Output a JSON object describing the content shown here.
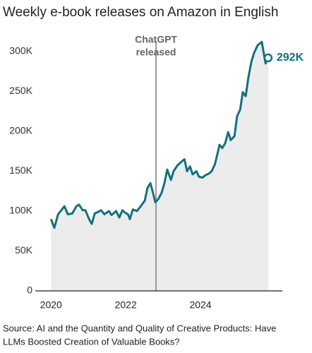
{
  "chart_data": {
    "type": "line",
    "title": "Weekly e-book releases on Amazon in English",
    "source": [
      "Source: AI and the Quantity and Quality of Creative Products: Have",
      "LLMs Boosted Creation of Valuable Books?"
    ],
    "x": [
      2020.0,
      2020.09,
      2020.19,
      2020.36,
      2020.45,
      2020.57,
      2020.68,
      2020.75,
      2020.85,
      2020.92,
      2021.02,
      2021.09,
      2021.17,
      2021.26,
      2021.34,
      2021.43,
      2021.55,
      2021.62,
      2021.74,
      2021.83,
      2021.91,
      2021.98,
      2022.06,
      2022.11,
      2022.19,
      2022.3,
      2022.4,
      2022.51,
      2022.58,
      2022.66,
      2022.74,
      2022.79,
      2022.87,
      2022.96,
      2023.04,
      2023.11,
      2023.21,
      2023.28,
      2023.38,
      2023.47,
      2023.57,
      2023.64,
      2023.72,
      2023.79,
      2023.89,
      2023.96,
      2024.06,
      2024.13,
      2024.23,
      2024.3,
      2024.38,
      2024.43,
      2024.51,
      2024.58,
      2024.66,
      2024.74,
      2024.81,
      2024.91,
      2024.98,
      2025.06,
      2025.13,
      2025.21,
      2025.28,
      2025.36,
      2025.43,
      2025.53,
      2025.64,
      2025.74,
      2025.81
    ],
    "values": [
      90000,
      79000,
      96000,
      106000,
      96000,
      97000,
      106000,
      108000,
      101000,
      101000,
      90000,
      84000,
      97000,
      99000,
      101000,
      96000,
      100000,
      95000,
      100000,
      92000,
      101000,
      98000,
      96000,
      90000,
      102000,
      100000,
      106000,
      113000,
      129000,
      135000,
      121000,
      111000,
      115000,
      123000,
      136000,
      152000,
      139000,
      150000,
      157000,
      161000,
      165000,
      150000,
      156000,
      146000,
      150000,
      143000,
      142000,
      145000,
      147000,
      150000,
      158000,
      167000,
      183000,
      179000,
      185000,
      199000,
      189000,
      194000,
      219000,
      227000,
      249000,
      244000,
      267000,
      287000,
      298000,
      308000,
      312000,
      285000,
      292000
    ],
    "value_labels": [
      null,
      null,
      null,
      null,
      null,
      null,
      null,
      null,
      null,
      null,
      null,
      null,
      null,
      null,
      null,
      null,
      null,
      null,
      null,
      null,
      null,
      null,
      null,
      null,
      null,
      null,
      null,
      null,
      null,
      null,
      null,
      null,
      null,
      null,
      null,
      null,
      null,
      null,
      null,
      null,
      null,
      null,
      null,
      null,
      null,
      null,
      null,
      null,
      null,
      null,
      null,
      null,
      null,
      null,
      null,
      null,
      null,
      null,
      null,
      null,
      null,
      null,
      null,
      null,
      null,
      null,
      null,
      null,
      "292K"
    ],
    "color": "#17707c",
    "area_color": "#ececec",
    "xlim": [
      2019.58,
      2026.19
    ],
    "xticks": [
      2020,
      2022,
      2024
    ],
    "ylim": [
      0,
      330000
    ],
    "yticks": [
      0,
      {
        "value": 50000,
        "label": "50K"
      },
      {
        "value": 100000,
        "label": "100K"
      },
      {
        "value": 150000,
        "label": "150K"
      },
      {
        "value": 200000,
        "label": "200K"
      },
      {
        "value": 250000,
        "label": "250K"
      },
      {
        "value": 300000,
        "label": "300K"
      }
    ],
    "annotation": {
      "x": 2022.81,
      "text": [
        "ChatGPT",
        "released"
      ]
    }
  }
}
